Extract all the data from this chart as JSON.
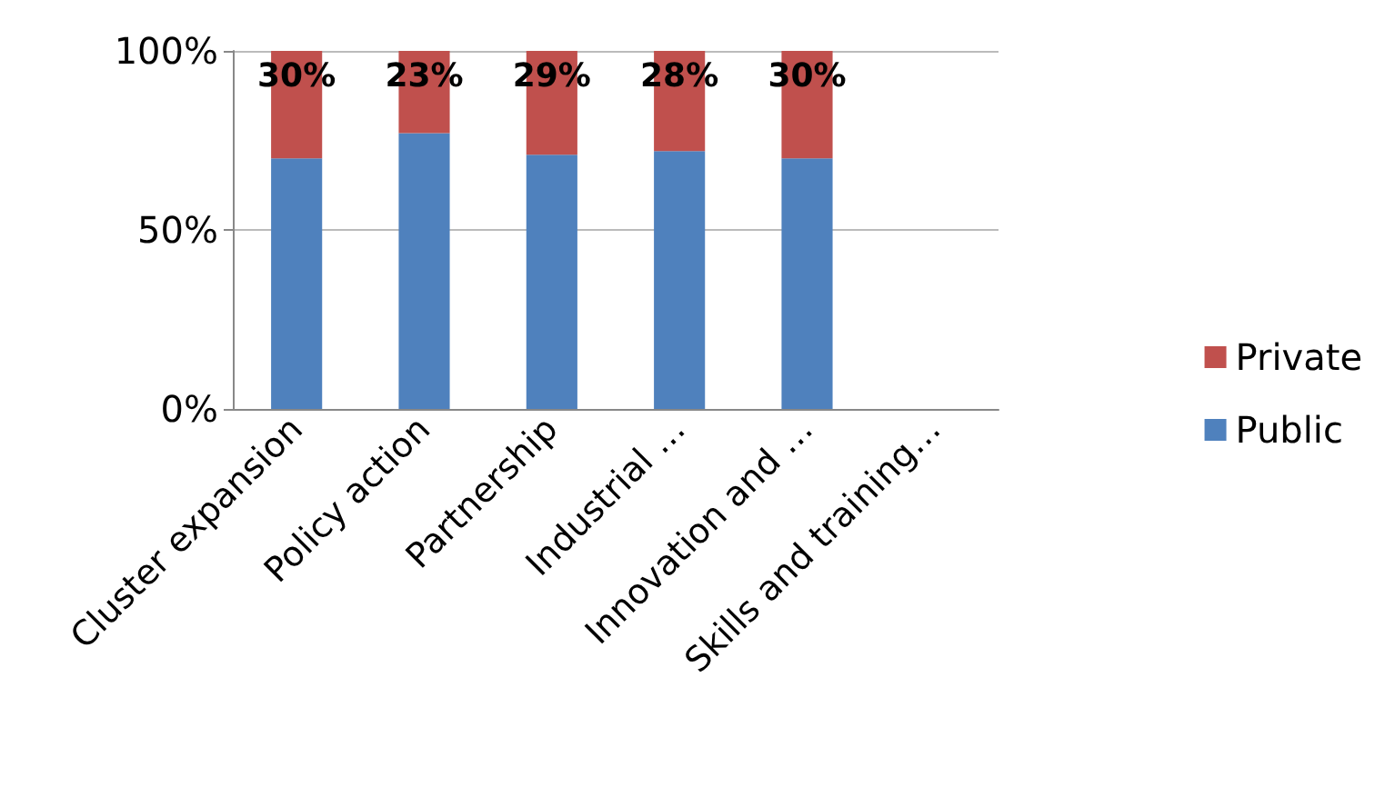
{
  "chart_data": {
    "type": "bar",
    "stacked": true,
    "categories": [
      "Cluster expansion",
      "Policy action",
      "Partnership",
      "Industrial …",
      "Innovation and …",
      "Skills and training…"
    ],
    "series": [
      {
        "name": "Public",
        "color": "#4f81bd",
        "values": [
          70,
          77,
          71,
          72,
          70,
          null
        ]
      },
      {
        "name": "Private",
        "color": "#c0504d",
        "values": [
          30,
          23,
          29,
          28,
          30,
          null
        ],
        "value_labels": [
          "30%",
          "23%",
          "29%",
          "28%",
          "30%",
          null
        ]
      }
    ],
    "ylim": [
      0,
      100
    ],
    "yticks": [
      {
        "value": 0,
        "label": "0%"
      },
      {
        "value": 50,
        "label": "50%"
      },
      {
        "value": 100,
        "label": "100%"
      }
    ],
    "grid": "y",
    "legend": "right"
  }
}
